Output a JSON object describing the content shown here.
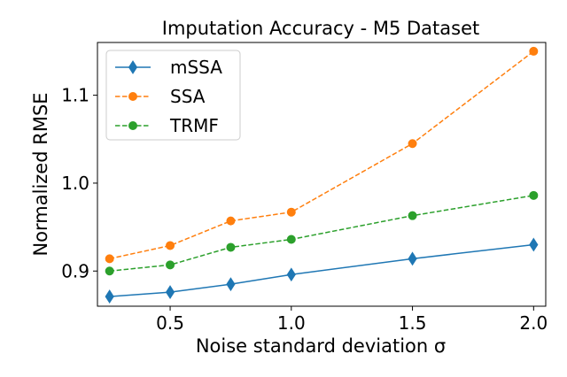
{
  "chart_data": {
    "type": "line",
    "title": "Imputation Accuracy - M5 Dataset",
    "xlabel": "Noise standard deviation σ",
    "ylabel": "Normalized RMSE",
    "x": [
      0.25,
      0.5,
      0.75,
      1.0,
      1.5,
      2.0
    ],
    "xlim": [
      0.2,
      2.05
    ],
    "ylim": [
      0.86,
      1.16
    ],
    "x_ticks": [
      0.5,
      1.0,
      1.5,
      2.0
    ],
    "x_tick_labels": [
      "0.5",
      "1.0",
      "1.5",
      "2.0"
    ],
    "y_ticks": [
      0.9,
      1.0,
      1.1
    ],
    "y_tick_labels": [
      "0.9",
      "1.0",
      "1.1"
    ],
    "grid": false,
    "legend_position": "top-left",
    "series": [
      {
        "name": "mSSA",
        "color": "#1f77b4",
        "marker": "diamond",
        "line_style": "solid",
        "values": [
          0.871,
          0.876,
          0.885,
          0.896,
          0.914,
          0.93
        ]
      },
      {
        "name": "SSA",
        "color": "#ff7f0e",
        "marker": "circle",
        "line_style": "dashed",
        "values": [
          0.914,
          0.929,
          0.957,
          0.967,
          1.045,
          1.15
        ]
      },
      {
        "name": "TRMF",
        "color": "#2ca02c",
        "marker": "circle",
        "line_style": "dashed",
        "values": [
          0.9,
          0.907,
          0.927,
          0.936,
          0.963,
          0.986
        ]
      }
    ]
  }
}
